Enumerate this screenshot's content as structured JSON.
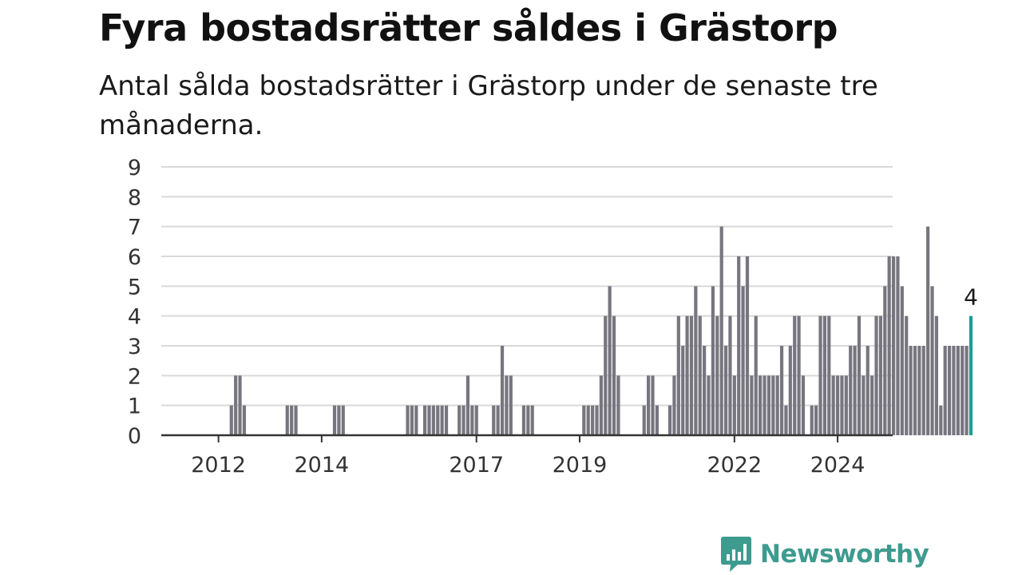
{
  "title": "Fyra bostadsrätter såldes i Grästorp",
  "subtitle": "Antal sålda bostadsrätter i Grästorp under de senaste tre månaderna.",
  "brand": {
    "name": "Newsworthy",
    "icon": "newsworthy-logo-icon",
    "color": "#3d9b8f"
  },
  "colors": {
    "bar": "#77767f",
    "highlight": "#1a9e93",
    "grid": "#d9d9d9",
    "axis": "#333333"
  },
  "chart_data": {
    "type": "bar",
    "x_start": "2011-01",
    "ylim": [
      0,
      9
    ],
    "yticks": [
      0,
      1,
      2,
      3,
      4,
      5,
      6,
      7,
      8,
      9
    ],
    "xticks": [
      {
        "label": "2012",
        "date": "2012-01"
      },
      {
        "label": "2014",
        "date": "2014-01"
      },
      {
        "label": "2017",
        "date": "2017-01"
      },
      {
        "label": "2019",
        "date": "2019-01"
      },
      {
        "label": "2022",
        "date": "2022-01"
      },
      {
        "label": "2024",
        "date": "2024-01"
      }
    ],
    "values": [
      0,
      0,
      0,
      0,
      0,
      0,
      0,
      0,
      0,
      0,
      0,
      0,
      0,
      0,
      0,
      1,
      2,
      2,
      1,
      0,
      0,
      0,
      0,
      0,
      0,
      0,
      0,
      0,
      1,
      1,
      1,
      0,
      0,
      0,
      0,
      0,
      0,
      0,
      0,
      1,
      1,
      1,
      0,
      0,
      0,
      0,
      0,
      0,
      0,
      0,
      0,
      0,
      0,
      0,
      0,
      0,
      1,
      1,
      1,
      0,
      1,
      1,
      1,
      1,
      1,
      1,
      0,
      0,
      1,
      1,
      2,
      1,
      1,
      0,
      0,
      0,
      1,
      1,
      3,
      2,
      2,
      0,
      0,
      1,
      1,
      1,
      0,
      0,
      0,
      0,
      0,
      0,
      0,
      0,
      0,
      0,
      0,
      1,
      1,
      1,
      1,
      2,
      4,
      5,
      4,
      2,
      0,
      0,
      0,
      0,
      0,
      1,
      2,
      2,
      1,
      0,
      0,
      1,
      2,
      4,
      3,
      4,
      4,
      5,
      4,
      3,
      2,
      5,
      4,
      7,
      3,
      4,
      2,
      6,
      5,
      6,
      2,
      4,
      2,
      2,
      2,
      2,
      2,
      3,
      1,
      3,
      4,
      4,
      2,
      0,
      1,
      1,
      4,
      4,
      4,
      2,
      2,
      2,
      2,
      3,
      3,
      4,
      2,
      3,
      2,
      4,
      4,
      5,
      6,
      6,
      6,
      5,
      4,
      3,
      3,
      3,
      3,
      7,
      5,
      4,
      1,
      3,
      3,
      3,
      3,
      3,
      3,
      4
    ],
    "highlight_index": 187,
    "highlight_label": "4"
  }
}
